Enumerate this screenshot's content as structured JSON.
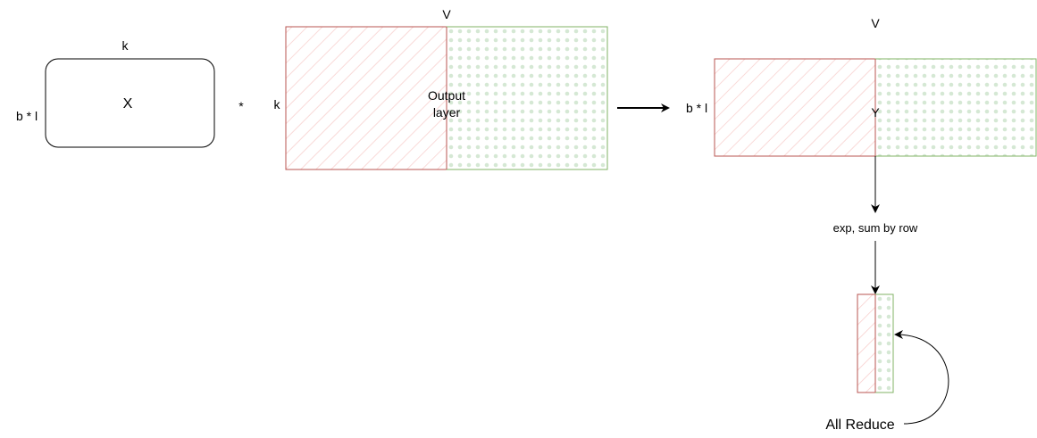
{
  "colors": {
    "red_stroke": "#b85450",
    "red_hatch": "#f8cecc",
    "green_stroke": "#82b366",
    "green_dots": "#d5e8d4",
    "black": "#000000"
  },
  "matrix_x": {
    "label": "X",
    "top_label": "k",
    "left_label": "b * l"
  },
  "multiply_symbol": "*",
  "output_layer": {
    "top_label": "V",
    "left_label": "k",
    "center_label_line1": "Output",
    "center_label_line2": "layer"
  },
  "result_y": {
    "top_label": "V",
    "left_label": "b * l",
    "center_label": "Y"
  },
  "step_label": "exp, sum by row",
  "reduce_label": "All Reduce"
}
